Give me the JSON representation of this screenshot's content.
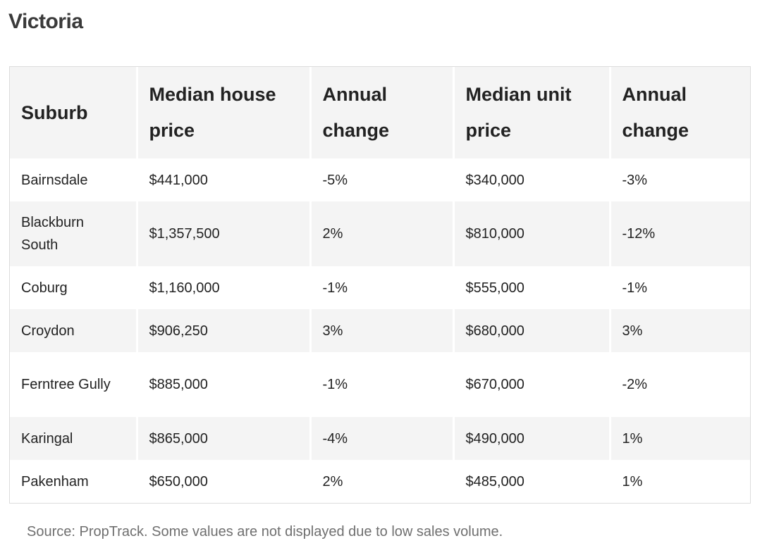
{
  "title": "Victoria",
  "table": {
    "headers": [
      "Suburb",
      "Median house price",
      "Annual change",
      "Median unit price",
      "Annual change"
    ],
    "rows": [
      [
        "Bairnsdale",
        "$441,000",
        "-5%",
        "$340,000",
        "-3%"
      ],
      [
        "Blackburn South",
        "$1,357,500",
        "2%",
        "$810,000",
        "-12%"
      ],
      [
        "Coburg",
        "$1,160,000",
        "-1%",
        "$555,000",
        "-1%"
      ],
      [
        "Croydon",
        "$906,250",
        "3%",
        "$680,000",
        "3%"
      ],
      [
        "Ferntree Gully",
        "$885,000",
        "-1%",
        "$670,000",
        "-2%"
      ],
      [
        "Karingal",
        "$865,000",
        "-4%",
        "$490,000",
        "1%"
      ],
      [
        "Pakenham",
        "$650,000",
        "2%",
        "$485,000",
        "1%"
      ]
    ]
  },
  "source": "Source: PropTrack. Some values are not displayed due to low sales volume.",
  "colors": {
    "header_bg": "#f4f4f4",
    "stripe_bg": "#f4f4f4",
    "border": "#dcdcdc",
    "source_text": "#6f6f6f"
  }
}
